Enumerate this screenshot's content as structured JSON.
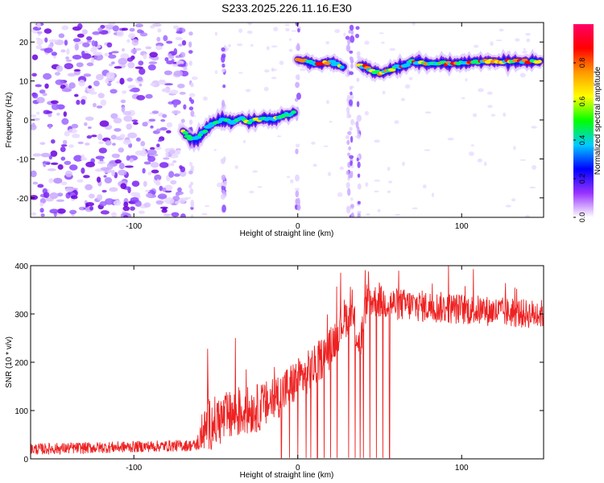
{
  "title": "S233.2025.226.11.16.E30",
  "chart_data": [
    {
      "type": "heatmap",
      "title": "S233.2025.226.11.16.E30",
      "xlabel": "Height of straight line (km)",
      "ylabel": "Frequency (Hz)",
      "xlim": [
        -163,
        150
      ],
      "ylim": [
        -25,
        25
      ],
      "xticks": [
        -100,
        0,
        100
      ],
      "xtick_labels": [
        "-100",
        "0",
        "100"
      ],
      "yticks": [
        -20,
        -10,
        0,
        10,
        20
      ],
      "ytick_labels": [
        "-20",
        "-10",
        "0",
        "10",
        "20"
      ],
      "grid": false,
      "colorbar": {
        "label": "Normalized spectral amplitude",
        "range": [
          0,
          1
        ],
        "ticks": [
          0,
          0.2,
          0.4,
          0.6,
          0.8
        ],
        "tick_labels": [
          "0.0",
          "0.2",
          "0.4",
          "0.6",
          "0.8"
        ],
        "colors": [
          "#ffffff",
          "#9933ff",
          "#0000ff",
          "#00ccff",
          "#00ff00",
          "#ffff00",
          "#ff9900",
          "#ff0000",
          "#ff0066"
        ]
      },
      "noise_region_x": [
        -163,
        -70
      ],
      "ridge_segments": [
        {
          "x": [
            -70,
            -66,
            -62,
            -58,
            -54,
            -50,
            -45,
            -40,
            -35,
            -30,
            -25,
            -20,
            -15,
            -10,
            -5,
            -2
          ],
          "y": [
            -3,
            -4.5,
            -5,
            -3.5,
            -1.5,
            -0.5,
            0,
            -0.5,
            0.5,
            -0.5,
            0,
            0.5,
            0,
            1,
            1.5,
            2
          ]
        },
        {
          "x": [
            0,
            5,
            10,
            15,
            20,
            25,
            28
          ],
          "y": [
            15.5,
            15,
            14.5,
            14.5,
            15,
            14,
            13.5
          ]
        },
        {
          "x": [
            38,
            42,
            46,
            50,
            55,
            60,
            65,
            70,
            80,
            90,
            100,
            110,
            120,
            130,
            140,
            148
          ],
          "y": [
            14,
            13.5,
            12.5,
            12,
            12.5,
            13.5,
            14,
            15,
            14.5,
            14.5,
            14.5,
            15,
            15,
            15,
            15,
            15
          ]
        }
      ],
      "vertical_streaks_x": [
        -65,
        -45,
        0,
        31,
        33,
        37
      ]
    },
    {
      "type": "line",
      "xlabel": "Height of straight line (km)",
      "ylabel": "SNR (10 * v/v)",
      "xlim": [
        -163,
        150
      ],
      "ylim": [
        0,
        400
      ],
      "xticks": [
        -100,
        0,
        100
      ],
      "xtick_labels": [
        "-100",
        "0",
        "100"
      ],
      "yticks": [
        0,
        100,
        200,
        300,
        400
      ],
      "ytick_labels": [
        "0",
        "100",
        "200",
        "300",
        "400"
      ],
      "grid": false,
      "series": [
        {
          "name": "SNR",
          "color": "#ee2222",
          "trend": {
            "x": [
              -163,
              -62,
              -55,
              -40,
              -20,
              -5,
              10,
              20,
              28,
              33,
              38,
              42,
              60,
              80,
              100,
              120,
              140,
              150
            ],
            "y": [
              20,
              28,
              70,
              90,
              110,
              150,
              190,
              230,
              290,
              300,
              230,
              330,
              320,
              315,
              310,
              305,
              300,
              300
            ]
          },
          "noise_amplitude": {
            "x": [
              -163,
              -62,
              -55,
              40,
              42,
              150
            ],
            "y": [
              12,
              12,
              55,
              40,
              35,
              30
            ]
          },
          "spikes": [
            {
              "x": -55,
              "y": 228
            },
            {
              "x": -38,
              "y": 250
            },
            {
              "x": 92,
              "y": 400
            }
          ],
          "dropouts_x": [
            -10,
            -5,
            0,
            5,
            8,
            12,
            16,
            20,
            24,
            31,
            35,
            38,
            40,
            44,
            48,
            52,
            56
          ]
        }
      ]
    }
  ]
}
